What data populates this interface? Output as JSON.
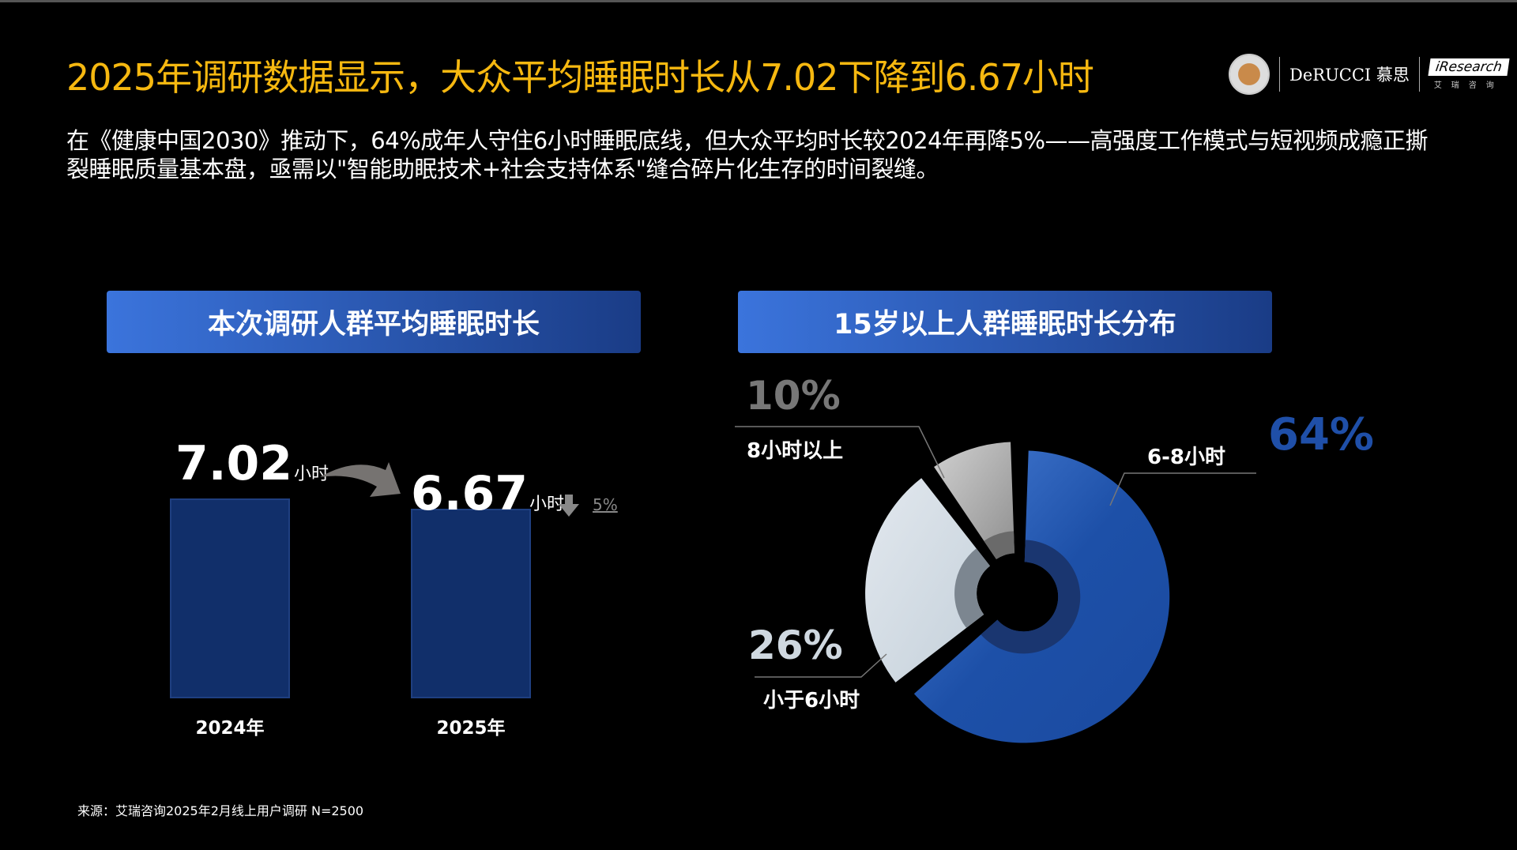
{
  "title": "2025年调研数据显示，大众平均睡眠时长从7.02下降到6.67小时",
  "subtitle": "在《健康中国2030》推动下，64%成年人守住6小时睡眠底线，但大众平均时长较2024年再降5%——高强度工作模式与短视频成瘾正撕裂睡眠质量基本盘，亟需以\"智能助眠技术+社会支持体系\"缝合碎片化生存的时间裂缝。",
  "logos": {
    "derucci": "DeRUCCI 慕思",
    "iresearch": "iResearch",
    "iresearch_cn": "艾瑞咨询"
  },
  "footer": "来源：艾瑞咨询2025年2月线上用户调研 N=2500",
  "chart_data": [
    {
      "type": "bar",
      "title": "本次调研人群平均睡眠时长",
      "categories": [
        "2024年",
        "2025年"
      ],
      "values": [
        7.02,
        6.67
      ],
      "value_labels": [
        "7.02",
        "6.67"
      ],
      "unit": "小时",
      "change": "5%",
      "change_direction": "down",
      "bar_color": "#112f6a"
    },
    {
      "type": "pie",
      "title": "15岁以上人群睡眠时长分布",
      "slices": [
        {
          "label": "6-8小时",
          "value": 64,
          "value_label": "64%",
          "color": "#2454b0",
          "label_color": "#1f4fa8"
        },
        {
          "label": "小于6小时",
          "value": 26,
          "value_label": "26%",
          "color": "#cdd8e2",
          "label_color": "#cfd8e0"
        },
        {
          "label": "8小时以上",
          "value": 10,
          "value_label": "10%",
          "color": "#aaaaaa",
          "label_color": "#777777"
        }
      ]
    }
  ]
}
